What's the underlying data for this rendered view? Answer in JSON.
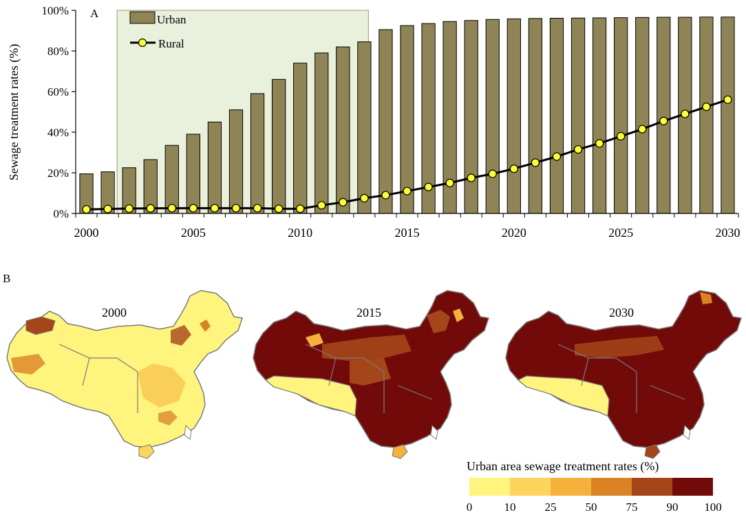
{
  "panel_a": {
    "label": "A",
    "chart_data": {
      "type": "bar",
      "x": [
        2000,
        2001,
        2002,
        2003,
        2004,
        2005,
        2006,
        2007,
        2008,
        2009,
        2010,
        2011,
        2012,
        2013,
        2014,
        2015,
        2016,
        2017,
        2018,
        2019,
        2020,
        2021,
        2022,
        2023,
        2024,
        2025,
        2026,
        2027,
        2028,
        2029,
        2030
      ],
      "series": [
        {
          "name": "Urban",
          "kind": "bar",
          "color": "#8f8456",
          "values": [
            19.5,
            20.5,
            22.5,
            26.5,
            33.5,
            39,
            45,
            51,
            59,
            66,
            74,
            79,
            82,
            84.5,
            90.5,
            92.5,
            93.5,
            94.5,
            95,
            95.5,
            95.8,
            96,
            96.1,
            96.2,
            96.3,
            96.4,
            96.5,
            96.6,
            96.6,
            96.7,
            96.7
          ]
        },
        {
          "name": "Rural",
          "kind": "line",
          "color": "#ffff33",
          "values": [
            2,
            2.2,
            2.4,
            2.5,
            2.6,
            2.6,
            2.6,
            2.6,
            2.6,
            2.3,
            2.3,
            4,
            5.5,
            7.5,
            9,
            11,
            13,
            15,
            17.5,
            19.5,
            22,
            25,
            28,
            31.5,
            34.5,
            38,
            41.5,
            45.5,
            49,
            52.5,
            56
          ]
        }
      ],
      "ylabel": "Sewage treatment rates (%)",
      "yticks": [
        "0%",
        "20%",
        "40%",
        "60%",
        "80%",
        "100%"
      ],
      "xticks": [
        "2000",
        "2005",
        "2010",
        "2015",
        "2020",
        "2025",
        "2030"
      ],
      "ylim": [
        0,
        100
      ],
      "xlim": [
        2000,
        2030
      ],
      "highlight_range": [
        2002,
        2013.5
      ],
      "highlight_color": "#e9f0dc",
      "legend_position": "top-left"
    }
  },
  "panel_b": {
    "label": "B",
    "maps": [
      {
        "year": "2000",
        "palette": "light"
      },
      {
        "year": "2015",
        "palette": "mid"
      },
      {
        "year": "2030",
        "palette": "dark"
      }
    ],
    "colorbar": {
      "title": "Urban area sewage treatment rates (%)",
      "ticks": [
        "0",
        "10",
        "25",
        "50",
        "75",
        "90",
        "100"
      ],
      "colors": [
        "#fff47e",
        "#fdd45c",
        "#f5b13b",
        "#d98325",
        "#a5461a",
        "#730a0a"
      ]
    }
  }
}
